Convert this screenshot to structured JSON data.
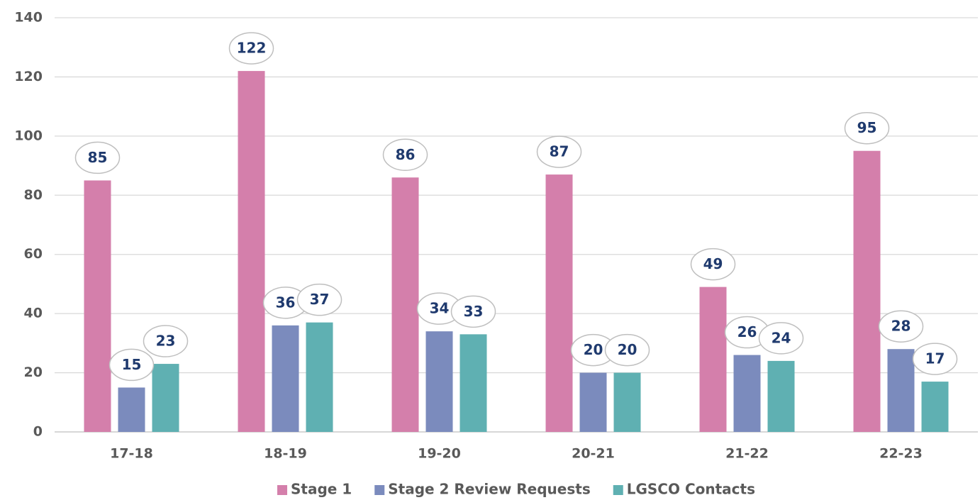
{
  "chart_data": {
    "type": "bar",
    "categories": [
      "17-18",
      "18-19",
      "19-20",
      "20-21",
      "21-22",
      "22-23"
    ],
    "series": [
      {
        "name": "Stage 1",
        "color": "#d47fab",
        "values": [
          85,
          122,
          86,
          87,
          49,
          95
        ]
      },
      {
        "name": "Stage 2 Review Requests",
        "color": "#7b8bbd",
        "values": [
          15,
          36,
          34,
          20,
          26,
          28
        ]
      },
      {
        "name": "LGSCO Contacts",
        "color": "#5fb0b2",
        "values": [
          23,
          37,
          33,
          20,
          24,
          17
        ]
      }
    ],
    "ylim": [
      0,
      140
    ],
    "yticks": [
      0,
      20,
      40,
      60,
      80,
      100,
      120,
      140
    ],
    "grid": true,
    "legend": "bottom"
  }
}
